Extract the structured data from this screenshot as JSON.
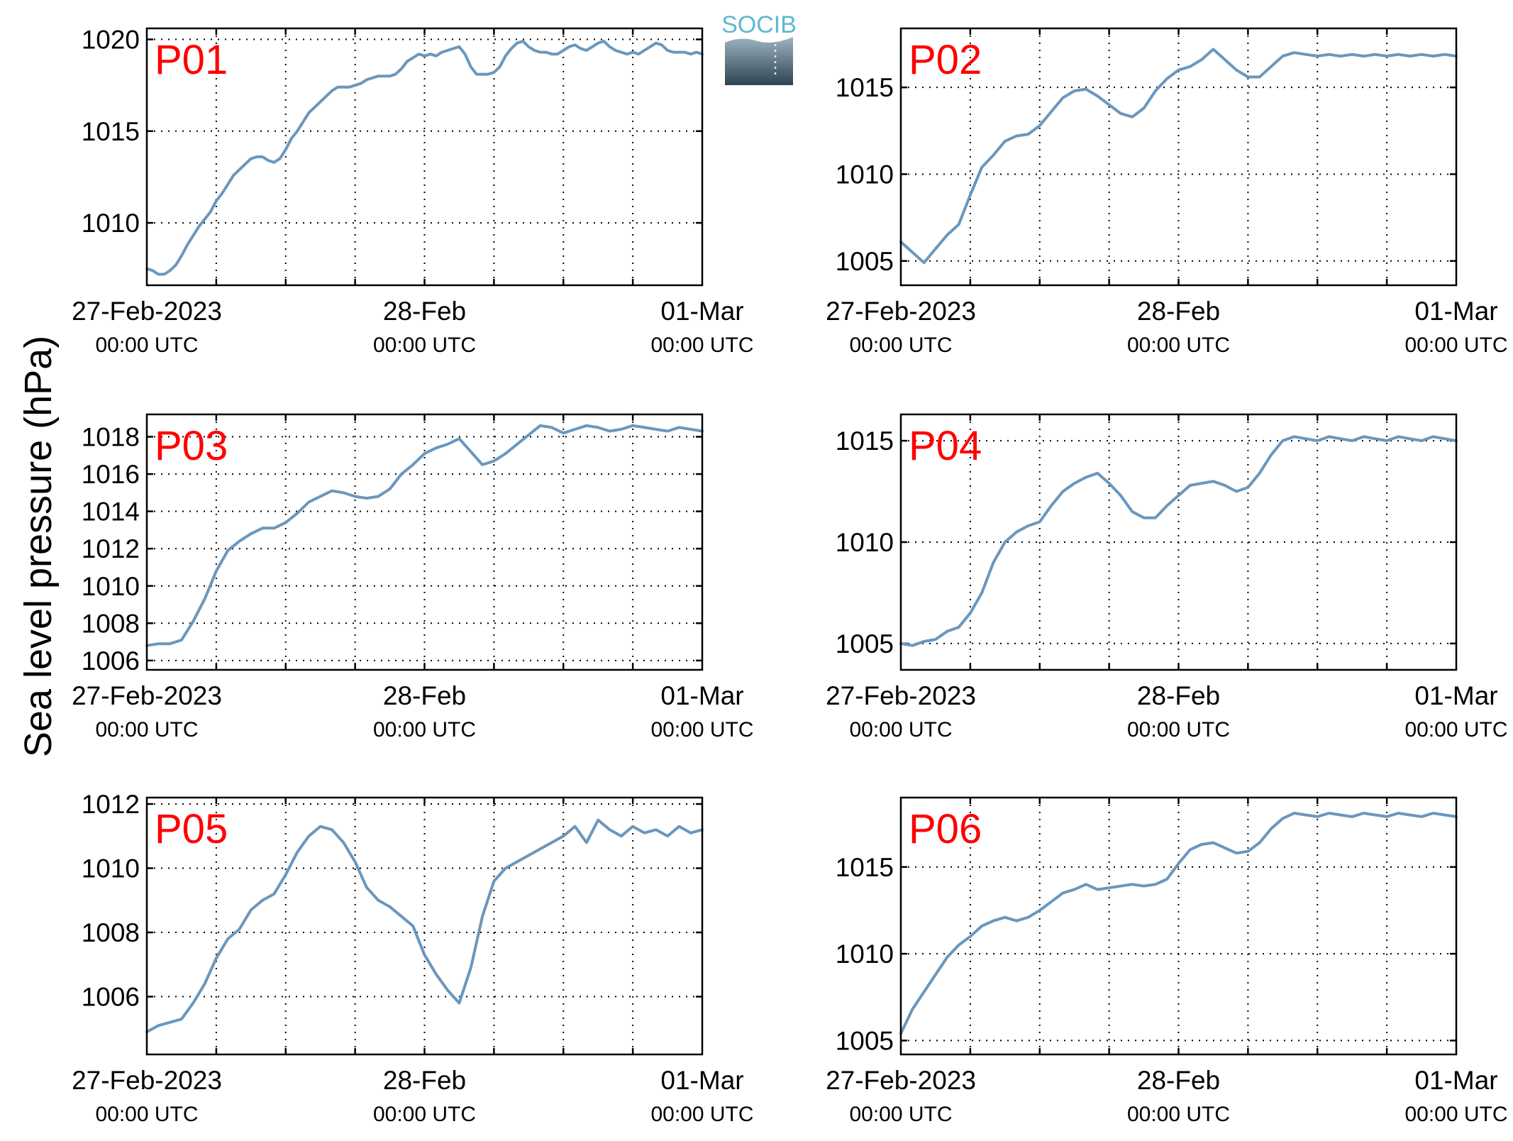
{
  "figure": {
    "ylabel": "Sea level pressure (hPa)",
    "logo_text": "SOCIB",
    "line_color": "#6a97bd",
    "label_color": "#ff0000"
  },
  "chart_data": [
    {
      "type": "line",
      "title": "P01",
      "x_labels": [
        {
          "main": "27-Feb-2023",
          "sub": "00:00 UTC"
        },
        {
          "main": "28-Feb",
          "sub": "00:00 UTC"
        },
        {
          "main": "01-Mar",
          "sub": "00:00 UTC"
        }
      ],
      "x_range_hours": [
        0,
        48
      ],
      "ylim": [
        1006.6,
        1020.6
      ],
      "yticks": [
        1010,
        1015,
        1020
      ],
      "grid": true,
      "series": [
        {
          "x_hours": [
            0,
            0.5,
            1,
            1.5,
            2,
            2.5,
            3,
            3.5,
            4,
            4.5,
            5,
            5.5,
            6,
            6.5,
            7,
            7.5,
            8,
            8.5,
            9,
            9.5,
            10,
            10.5,
            11,
            11.5,
            12,
            12.5,
            13,
            13.5,
            14,
            14.5,
            15,
            15.5,
            16,
            16.5,
            17,
            17.5,
            18,
            18.5,
            19,
            19.5,
            20,
            20.5,
            21,
            21.5,
            22,
            22.5,
            23,
            23.5,
            24,
            24.5,
            25,
            25.5,
            26,
            26.5,
            27,
            27.5,
            28,
            28.5,
            29,
            29.5,
            30,
            30.5,
            31,
            31.5,
            32,
            32.5,
            33,
            33.5,
            34,
            34.5,
            35,
            35.5,
            36,
            36.5,
            37,
            37.5,
            38,
            38.5,
            39,
            39.5,
            40,
            40.5,
            41,
            41.5,
            42,
            42.5,
            43,
            43.5,
            44,
            44.5,
            45,
            45.5,
            46,
            46.5,
            47,
            47.5,
            48
          ],
          "values": [
            1007.5,
            1007.4,
            1007.2,
            1007.2,
            1007.4,
            1007.7,
            1008.2,
            1008.8,
            1009.3,
            1009.8,
            1010.2,
            1010.6,
            1011.2,
            1011.6,
            1012.1,
            1012.6,
            1012.9,
            1013.2,
            1013.5,
            1013.6,
            1013.6,
            1013.4,
            1013.3,
            1013.5,
            1014.0,
            1014.6,
            1015.0,
            1015.5,
            1016.0,
            1016.3,
            1016.6,
            1016.9,
            1017.2,
            1017.4,
            1017.4,
            1017.4,
            1017.5,
            1017.6,
            1017.8,
            1017.9,
            1018.0,
            1018.0,
            1018.0,
            1018.1,
            1018.4,
            1018.8,
            1019.0,
            1019.2,
            1019.1,
            1019.2,
            1019.1,
            1019.3,
            1019.4,
            1019.5,
            1019.6,
            1019.2,
            1018.5,
            1018.1,
            1018.1,
            1018.1,
            1018.2,
            1018.5,
            1019.1,
            1019.5,
            1019.8,
            1019.9,
            1019.6,
            1019.4,
            1019.3,
            1019.3,
            1019.2,
            1019.2,
            1019.4,
            1019.6,
            1019.7,
            1019.5,
            1019.4,
            1019.6,
            1019.8,
            1019.9,
            1019.6,
            1019.4,
            1019.3,
            1019.2,
            1019.3,
            1019.2,
            1019.4,
            1019.6,
            1019.8,
            1019.7,
            1019.4,
            1019.3,
            1019.3,
            1019.3,
            1019.2,
            1019.3,
            1019.2
          ]
        }
      ]
    },
    {
      "type": "line",
      "title": "P02",
      "x_labels": [
        {
          "main": "27-Feb-2023",
          "sub": "00:00 UTC"
        },
        {
          "main": "28-Feb",
          "sub": "00:00 UTC"
        },
        {
          "main": "01-Mar",
          "sub": "00:00 UTC"
        }
      ],
      "x_range_hours": [
        0,
        48
      ],
      "ylim": [
        1003.6,
        1018.4
      ],
      "yticks": [
        1005,
        1010,
        1015
      ],
      "grid": true,
      "series": [
        {
          "x_hours": [
            0,
            1,
            2,
            3,
            4,
            5,
            6,
            7,
            8,
            9,
            10,
            11,
            12,
            13,
            14,
            15,
            16,
            17,
            18,
            19,
            20,
            21,
            22,
            23,
            24,
            25,
            26,
            27,
            28,
            29,
            30,
            31,
            32,
            33,
            34,
            35,
            36,
            37,
            38,
            39,
            40,
            41,
            42,
            43,
            44,
            45,
            46,
            47,
            48
          ],
          "values": [
            1006.1,
            1005.5,
            1004.9,
            1005.7,
            1006.5,
            1007.1,
            1008.8,
            1010.4,
            1011.1,
            1011.9,
            1012.2,
            1012.3,
            1012.8,
            1013.6,
            1014.4,
            1014.8,
            1014.9,
            1014.5,
            1014.0,
            1013.5,
            1013.3,
            1013.8,
            1014.8,
            1015.5,
            1016.0,
            1016.2,
            1016.6,
            1017.2,
            1016.6,
            1016.0,
            1015.6,
            1015.6,
            1016.2,
            1016.8,
            1017.0,
            1016.9,
            1016.8,
            1016.9,
            1016.8,
            1016.9,
            1016.8,
            1016.9,
            1016.8,
            1016.9,
            1016.8,
            1016.9,
            1016.8,
            1016.9,
            1016.8
          ]
        }
      ]
    },
    {
      "type": "line",
      "title": "P03",
      "x_labels": [
        {
          "main": "27-Feb-2023",
          "sub": "00:00 UTC"
        },
        {
          "main": "28-Feb",
          "sub": "00:00 UTC"
        },
        {
          "main": "01-Mar",
          "sub": "00:00 UTC"
        }
      ],
      "x_range_hours": [
        0,
        48
      ],
      "ylim": [
        1005.5,
        1019.2
      ],
      "yticks": [
        1006,
        1008,
        1010,
        1012,
        1014,
        1016,
        1018
      ],
      "grid": true,
      "series": [
        {
          "x_hours": [
            0,
            1,
            2,
            3,
            4,
            5,
            6,
            7,
            8,
            9,
            10,
            11,
            12,
            13,
            14,
            15,
            16,
            17,
            18,
            19,
            20,
            21,
            22,
            23,
            24,
            25,
            26,
            27,
            28,
            29,
            30,
            31,
            32,
            33,
            34,
            35,
            36,
            37,
            38,
            39,
            40,
            41,
            42,
            43,
            44,
            45,
            46,
            47,
            48
          ],
          "values": [
            1006.8,
            1006.9,
            1006.9,
            1007.1,
            1008.1,
            1009.3,
            1010.8,
            1011.9,
            1012.4,
            1012.8,
            1013.1,
            1013.1,
            1013.4,
            1013.9,
            1014.5,
            1014.8,
            1015.1,
            1015.0,
            1014.8,
            1014.7,
            1014.8,
            1015.2,
            1016.0,
            1016.5,
            1017.1,
            1017.4,
            1017.6,
            1017.9,
            1017.2,
            1016.5,
            1016.7,
            1017.1,
            1017.6,
            1018.1,
            1018.6,
            1018.5,
            1018.2,
            1018.4,
            1018.6,
            1018.5,
            1018.3,
            1018.4,
            1018.6,
            1018.5,
            1018.4,
            1018.3,
            1018.5,
            1018.4,
            1018.3
          ]
        }
      ]
    },
    {
      "type": "line",
      "title": "P04",
      "x_labels": [
        {
          "main": "27-Feb-2023",
          "sub": "00:00 UTC"
        },
        {
          "main": "28-Feb",
          "sub": "00:00 UTC"
        },
        {
          "main": "01-Mar",
          "sub": "00:00 UTC"
        }
      ],
      "x_range_hours": [
        0,
        48
      ],
      "ylim": [
        1003.7,
        1016.3
      ],
      "yticks": [
        1005,
        1010,
        1015
      ],
      "grid": true,
      "series": [
        {
          "x_hours": [
            0,
            1,
            2,
            3,
            4,
            5,
            6,
            7,
            8,
            9,
            10,
            11,
            12,
            13,
            14,
            15,
            16,
            17,
            18,
            19,
            20,
            21,
            22,
            23,
            24,
            25,
            26,
            27,
            28,
            29,
            30,
            31,
            32,
            33,
            34,
            35,
            36,
            37,
            38,
            39,
            40,
            41,
            42,
            43,
            44,
            45,
            46,
            47,
            48
          ],
          "values": [
            1005.0,
            1004.9,
            1005.1,
            1005.2,
            1005.6,
            1005.8,
            1006.5,
            1007.5,
            1009.0,
            1010.0,
            1010.5,
            1010.8,
            1011.0,
            1011.8,
            1012.5,
            1012.9,
            1013.2,
            1013.4,
            1012.9,
            1012.3,
            1011.5,
            1011.2,
            1011.2,
            1011.8,
            1012.3,
            1012.8,
            1012.9,
            1013.0,
            1012.8,
            1012.5,
            1012.7,
            1013.4,
            1014.3,
            1015.0,
            1015.2,
            1015.1,
            1015.0,
            1015.2,
            1015.1,
            1015.0,
            1015.2,
            1015.1,
            1015.0,
            1015.2,
            1015.1,
            1015.0,
            1015.2,
            1015.1,
            1015.0
          ]
        }
      ]
    },
    {
      "type": "line",
      "title": "P05",
      "x_labels": [
        {
          "main": "27-Feb-2023",
          "sub": "00:00 UTC"
        },
        {
          "main": "28-Feb",
          "sub": "00:00 UTC"
        },
        {
          "main": "01-Mar",
          "sub": "00:00 UTC"
        }
      ],
      "x_range_hours": [
        0,
        48
      ],
      "ylim": [
        1004.2,
        1012.2
      ],
      "yticks": [
        1006,
        1008,
        1010,
        1012
      ],
      "grid": true,
      "series": [
        {
          "x_hours": [
            0,
            1,
            2,
            3,
            4,
            5,
            6,
            7,
            8,
            9,
            10,
            11,
            12,
            13,
            14,
            15,
            16,
            17,
            18,
            19,
            20,
            21,
            22,
            23,
            24,
            25,
            26,
            27,
            28,
            29,
            30,
            31,
            32,
            33,
            34,
            35,
            36,
            37,
            38,
            39,
            40,
            41,
            42,
            43,
            44,
            45,
            46,
            47,
            48
          ],
          "values": [
            1004.9,
            1005.1,
            1005.2,
            1005.3,
            1005.8,
            1006.4,
            1007.2,
            1007.8,
            1008.1,
            1008.7,
            1009.0,
            1009.2,
            1009.8,
            1010.5,
            1011.0,
            1011.3,
            1011.2,
            1010.8,
            1010.2,
            1009.4,
            1009.0,
            1008.8,
            1008.5,
            1008.2,
            1007.3,
            1006.7,
            1006.2,
            1005.8,
            1006.9,
            1008.5,
            1009.6,
            1010.0,
            1010.2,
            1010.4,
            1010.6,
            1010.8,
            1011.0,
            1011.3,
            1010.8,
            1011.5,
            1011.2,
            1011.0,
            1011.3,
            1011.1,
            1011.2,
            1011.0,
            1011.3,
            1011.1,
            1011.2
          ]
        }
      ]
    },
    {
      "type": "line",
      "title": "P06",
      "x_labels": [
        {
          "main": "27-Feb-2023",
          "sub": "00:00 UTC"
        },
        {
          "main": "28-Feb",
          "sub": "00:00 UTC"
        },
        {
          "main": "01-Mar",
          "sub": "00:00 UTC"
        }
      ],
      "x_range_hours": [
        0,
        48
      ],
      "ylim": [
        1004.2,
        1019.0
      ],
      "yticks": [
        1005,
        1010,
        1015
      ],
      "grid": true,
      "series": [
        {
          "x_hours": [
            0,
            1,
            2,
            3,
            4,
            5,
            6,
            7,
            8,
            9,
            10,
            11,
            12,
            13,
            14,
            15,
            16,
            17,
            18,
            19,
            20,
            21,
            22,
            23,
            24,
            25,
            26,
            27,
            28,
            29,
            30,
            31,
            32,
            33,
            34,
            35,
            36,
            37,
            38,
            39,
            40,
            41,
            42,
            43,
            44,
            45,
            46,
            47,
            48
          ],
          "values": [
            1005.4,
            1006.8,
            1007.8,
            1008.8,
            1009.8,
            1010.5,
            1011.0,
            1011.6,
            1011.9,
            1012.1,
            1011.9,
            1012.1,
            1012.5,
            1013.0,
            1013.5,
            1013.7,
            1014.0,
            1013.7,
            1013.8,
            1013.9,
            1014.0,
            1013.9,
            1014.0,
            1014.3,
            1015.2,
            1016.0,
            1016.3,
            1016.4,
            1016.1,
            1015.8,
            1015.9,
            1016.4,
            1017.2,
            1017.8,
            1018.1,
            1018.0,
            1017.9,
            1018.1,
            1018.0,
            1017.9,
            1018.1,
            1018.0,
            1017.9,
            1018.1,
            1018.0,
            1017.9,
            1018.1,
            1018.0,
            1017.9
          ]
        }
      ]
    }
  ]
}
